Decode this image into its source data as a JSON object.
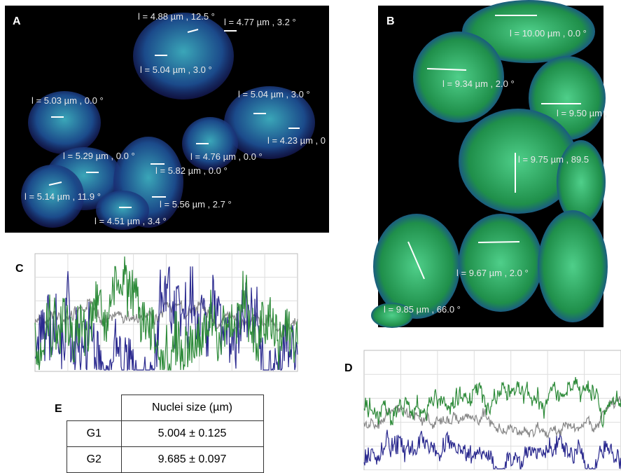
{
  "panels": {
    "A": {
      "label": "A",
      "measurements": [
        "l = 4.88 µm , 12.5 °",
        "l = 4.77 µm , 3.2 °",
        "l = 5.04 µm , 3.0 °",
        "l = 5.03 µm , 0.0 °",
        "l = 5.04 µm , 3.0 °",
        "l = 4.23 µm , 0",
        "l = 5.29 µm , 0.0 °",
        "l = 4.76 µm , 0.0 °",
        "l = 5.82 µm , 0.0 °",
        "l = 5.14 µm , 11.9 °",
        "l = 5.56 µm , 2.7 °",
        "l = 4.51 µm , 3.4 °"
      ]
    },
    "B": {
      "label": "B",
      "measurements": [
        "l = 10.00 µm , 0.0 °",
        "l = 9.34 µm , 2.0 °",
        "l = 9.50 µm ,",
        "l = 9.75 µm , 89.5",
        "l = 9.67 µm , 2.0 °",
        "l = 9.85 µm , 66.0 °"
      ]
    },
    "C": {
      "label": "C"
    },
    "D": {
      "label": "D"
    },
    "E": {
      "label": "E",
      "table": {
        "header": "Nuclei size (µm)",
        "rows": [
          [
            "G1",
            "5.004 ± 0.125"
          ],
          [
            "G2",
            "9.685 ± 0.097"
          ]
        ]
      }
    }
  }
}
